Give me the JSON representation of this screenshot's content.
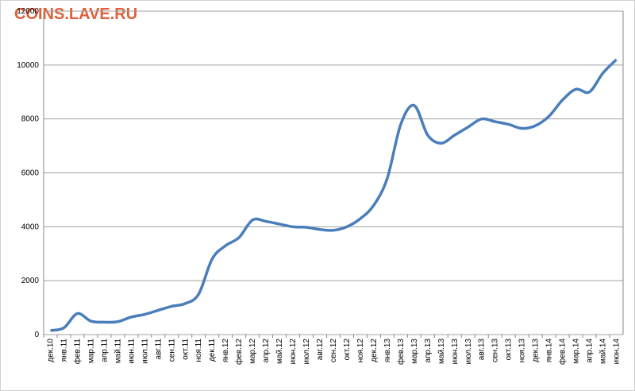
{
  "watermark": "COINS.LAVE.RU",
  "chart_data": {
    "type": "line",
    "categories": [
      "дек.10",
      "янв.11",
      "фев.11",
      "мар.11",
      "апр.11",
      "май.11",
      "июн.11",
      "июл.11",
      "авг.11",
      "сен.11",
      "окт.11",
      "ноя.11",
      "дек.11",
      "янв.12",
      "фев.12",
      "мар.12",
      "апр.12",
      "май.12",
      "июн.12",
      "июл.12",
      "авг.12",
      "сен.12",
      "окт.12",
      "ноя.12",
      "дек.12",
      "янв.13",
      "фев.13",
      "мар.13",
      "апр.13",
      "май.13",
      "июн.13",
      "июл.13",
      "авг.13",
      "сен.13",
      "окт.13",
      "ноя.13",
      "дек.13",
      "янв.14",
      "фев.14",
      "мар.14",
      "апр.14",
      "май.14",
      "июн.14"
    ],
    "values": [
      150,
      250,
      780,
      500,
      460,
      480,
      650,
      750,
      900,
      1050,
      1150,
      1500,
      2800,
      3300,
      3600,
      4250,
      4200,
      4100,
      4000,
      3980,
      3900,
      3870,
      4000,
      4300,
      4800,
      5800,
      7800,
      8500,
      7400,
      7100,
      7400,
      7700,
      8000,
      7900,
      7800,
      7650,
      7750,
      8100,
      8700,
      9100,
      9000,
      9700,
      10200
    ],
    "color": "#4a7ebb",
    "ylim": [
      0,
      12000
    ],
    "yticks": [
      0,
      2000,
      4000,
      6000,
      8000,
      10000,
      12000
    ],
    "grid": true
  }
}
